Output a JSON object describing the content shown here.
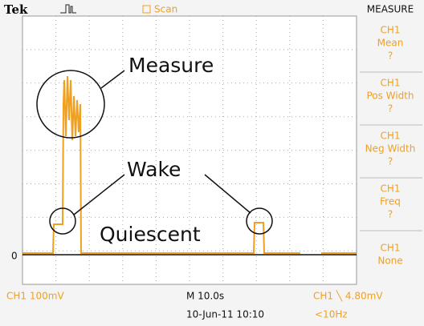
{
  "header": {
    "brand": "Tek",
    "mode": "Scan"
  },
  "menu": {
    "title": "MEASURE",
    "items": [
      [
        "CH1",
        "Mean",
        "?"
      ],
      [
        "CH1",
        "Pos Width",
        "?"
      ],
      [
        "CH1",
        "Neg Width",
        "?"
      ],
      [
        "CH1",
        "Freq",
        "?"
      ],
      [
        "CH1",
        "None"
      ]
    ]
  },
  "annotations": {
    "measure": "Measure",
    "wake": "Wake",
    "quiescent": "Quiescent"
  },
  "ground_marker": "0",
  "status": {
    "channel_scale": "CH1  100mV",
    "timebase": "M 10.0s",
    "trigger": "CH1 ╲ 4.80mV",
    "date": "10-Jun-11 10:10",
    "frequency": "<10Hz"
  }
}
